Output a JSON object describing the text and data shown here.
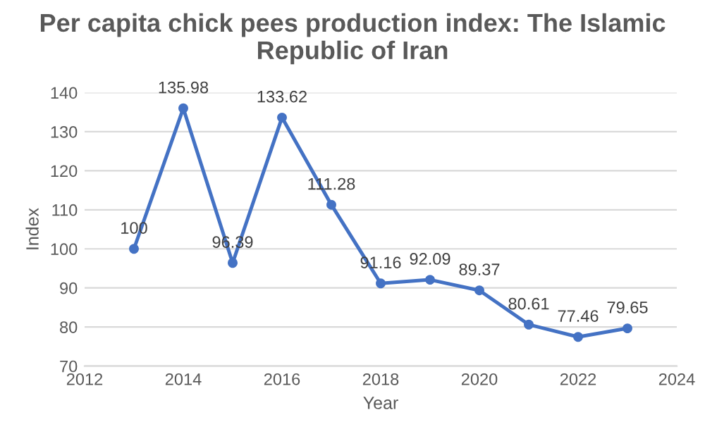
{
  "chart_data": {
    "type": "line",
    "title": "Per capita chick pees production index: The Islamic Republic of Iran",
    "xlabel": "Year",
    "ylabel": "Index",
    "x": [
      2013,
      2014,
      2015,
      2016,
      2017,
      2018,
      2019,
      2020,
      2021,
      2022,
      2023
    ],
    "series": [
      {
        "color": "#4472c4",
        "values": [
          100,
          135.98,
          96.39,
          133.62,
          111.28,
          91.16,
          92.09,
          89.37,
          80.61,
          77.46,
          79.65
        ]
      }
    ],
    "xlim": [
      2012,
      2024
    ],
    "xticks": [
      2012,
      2014,
      2016,
      2018,
      2020,
      2022,
      2024
    ],
    "ylim": [
      70,
      140
    ],
    "yticks": [
      70,
      80,
      90,
      100,
      110,
      120,
      130,
      140
    ],
    "grid": "y",
    "marker": "circle",
    "line_style": "solid",
    "data_labels": true
  }
}
